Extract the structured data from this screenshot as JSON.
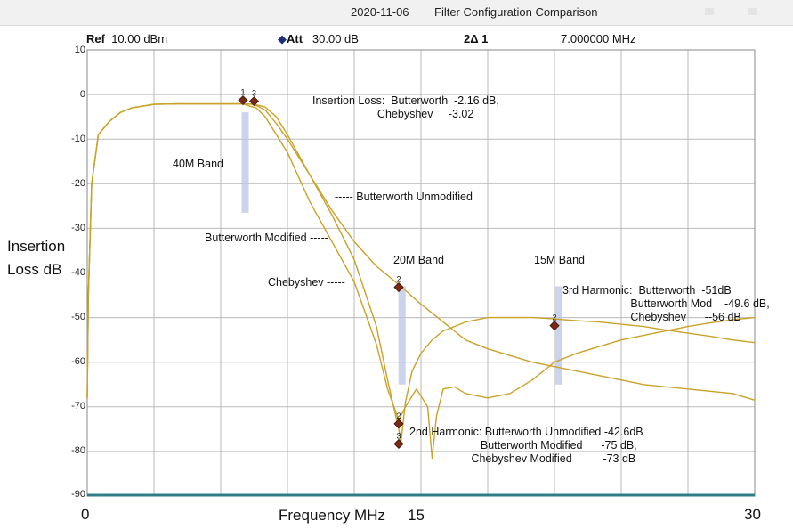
{
  "window": {
    "date": "2020-11-06",
    "title": "Filter Configuration Comparison"
  },
  "header": {
    "ref_label": "Ref",
    "ref_value": "10.00 dBm",
    "att_label": "Att",
    "att_value": "30.00 dB",
    "marker_label": "2Δ 1",
    "marker_value": "7.000000 MHz"
  },
  "axes": {
    "y_label_line1": "Insertion",
    "y_label_line2": "Loss dB",
    "x_label": "Frequency MHz",
    "y_ticks": [
      "10",
      "0",
      "-10",
      "-20",
      "-30",
      "-40",
      "-50",
      "-60",
      "-70",
      "-80",
      "-90"
    ],
    "x_ticks": [
      "0",
      "15",
      "30"
    ]
  },
  "annotations": {
    "insertion_loss": "Insertion Loss:  Butterworth  -2.16 dB,\n                     Chebyshev     -3.02",
    "band_40m": "40M Band",
    "band_20m": "20M Band",
    "band_15m": "15M Band",
    "butterworth_unmodified": "----- Butterworth Unmodified",
    "butterworth_modified": "Butterworth Modified -----",
    "chebyshev": "Chebyshev -----",
    "third_harmonic": "3rd Harmonic:  Butterworth  -51dB\n                      Butterworth Mod    -49.6 dB,\n                      Chebyshev      --56 dB",
    "second_harmonic": "2nd Harmonic: Butterworth Unmodified -42.6dB\n                       Butterworth Modified      -75 dB,\n                    Chebyshev Modified          -73 dB"
  },
  "colors": {
    "trace": "#c9a227",
    "grid": "#b9b9b9",
    "marker": "#7a2a12",
    "band": "#b9c6e6",
    "baseline": "#2f7d8a"
  },
  "chart_data": {
    "type": "line",
    "x_unit": "MHz",
    "y_unit": "dB",
    "xlim": [
      0,
      30
    ],
    "ylim": [
      -90,
      10
    ],
    "grid": true,
    "series": [
      {
        "name": "Butterworth Unmodified",
        "x": [
          0,
          0.05,
          0.2,
          0.5,
          1,
          1.5,
          2,
          3,
          4,
          5,
          6,
          7,
          7.5,
          8,
          8.5,
          9,
          9.5,
          10,
          11,
          12,
          13,
          14,
          15,
          16,
          17,
          18,
          19,
          20,
          21,
          22,
          23,
          24,
          25,
          26,
          27,
          28,
          29,
          30
        ],
        "y": [
          -68,
          -45,
          -20,
          -9,
          -6,
          -4,
          -3,
          -2.2,
          -2.1,
          -2.1,
          -2.1,
          -2.1,
          -2.2,
          -2.8,
          -5,
          -9,
          -13.5,
          -18,
          -26,
          -33,
          -38.5,
          -42.6,
          -47,
          -51,
          -55,
          -57,
          -58.5,
          -60,
          -61,
          -62,
          -63,
          -64,
          -65,
          -65.5,
          -66,
          -66.5,
          -67,
          -68.5
        ]
      },
      {
        "name": "Butterworth Modified",
        "x": [
          0,
          0.05,
          0.2,
          0.5,
          1,
          1.5,
          2,
          3,
          4,
          5,
          6,
          7,
          7.5,
          8,
          8.5,
          9,
          10,
          11,
          12,
          13,
          13.5,
          14,
          14.1,
          14.3,
          14.6,
          15,
          15.5,
          16,
          17,
          18,
          19,
          20,
          21,
          22,
          23,
          24,
          25,
          26,
          27,
          28,
          29,
          30
        ],
        "y": [
          -68,
          -45,
          -20,
          -9,
          -6,
          -4,
          -3,
          -2.2,
          -2.1,
          -2.1,
          -2.1,
          -2.1,
          -2.2,
          -3.5,
          -6.5,
          -10,
          -18,
          -27,
          -37,
          -52,
          -64,
          -75,
          -78,
          -69,
          -62,
          -58,
          -55,
          -53,
          -51,
          -50,
          -50,
          -50,
          -50.3,
          -50.7,
          -51,
          -51.5,
          -52,
          -52.8,
          -53.5,
          -54.2,
          -55,
          -55.6
        ]
      },
      {
        "name": "Chebyshev",
        "x": [
          0,
          0.05,
          0.2,
          0.5,
          1,
          1.5,
          2,
          3,
          4,
          5,
          6,
          7,
          7.3,
          7.6,
          8,
          9,
          10,
          11,
          12,
          13,
          13.5,
          14,
          14.3,
          14.8,
          15.3,
          15.5,
          15.7,
          16,
          16.5,
          17,
          18,
          19,
          20,
          21,
          22,
          23,
          24,
          25,
          26,
          27,
          28,
          29,
          30
        ],
        "y": [
          -68,
          -45,
          -20,
          -9,
          -6,
          -4,
          -3,
          -2.2,
          -2.1,
          -2.1,
          -2.1,
          -2.1,
          -2.6,
          -3.02,
          -5,
          -13,
          -24,
          -33,
          -42,
          -56,
          -66,
          -73,
          -70,
          -66,
          -70,
          -81.5,
          -72,
          -66,
          -65.5,
          -67,
          -68,
          -67,
          -64,
          -60,
          -58,
          -56.5,
          -55,
          -54,
          -53,
          -52,
          -51.2,
          -50.5,
          -50
        ]
      }
    ],
    "markers": [
      {
        "label": "1",
        "x": 7.0,
        "y": -1.3
      },
      {
        "label": "3",
        "x": 7.5,
        "y": -1.5
      },
      {
        "label": "2",
        "x": 14.0,
        "y": -43.2
      },
      {
        "label": "2",
        "x": 14.0,
        "y": -73.8
      },
      {
        "label": "3",
        "x": 14.0,
        "y": -78.3
      },
      {
        "label": "2",
        "x": 21.0,
        "y": -51.8
      }
    ],
    "bands": [
      {
        "name": "40M Band",
        "x": 7.1,
        "y_top": -4,
        "y_bottom": -26.5
      },
      {
        "name": "20M Band",
        "x": 14.15,
        "y_top": -43,
        "y_bottom": -65
      },
      {
        "name": "15M Band",
        "x": 21.2,
        "y_top": -43,
        "y_bottom": -65
      }
    ]
  }
}
